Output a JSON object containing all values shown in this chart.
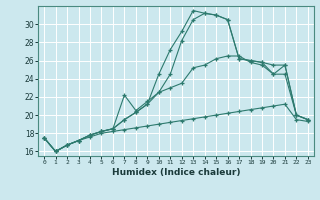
{
  "xlabel": "Humidex (Indice chaleur)",
  "background_color": "#cce8ee",
  "grid_color": "#b0d8e0",
  "line_color": "#2d7a6e",
  "xlim": [
    -0.5,
    23.5
  ],
  "ylim": [
    15.5,
    32
  ],
  "yticks": [
    16,
    18,
    20,
    22,
    24,
    26,
    28,
    30
  ],
  "xticks": [
    0,
    1,
    2,
    3,
    4,
    5,
    6,
    7,
    8,
    9,
    10,
    11,
    12,
    13,
    14,
    15,
    16,
    17,
    18,
    19,
    20,
    21,
    22,
    23
  ],
  "line1_x": [
    0,
    1,
    2,
    3,
    4,
    5,
    6,
    7,
    8,
    9,
    10,
    11,
    12,
    13,
    14,
    15,
    16,
    17,
    18,
    19,
    20,
    21,
    22,
    23
  ],
  "line1_y": [
    17.5,
    16.0,
    16.7,
    17.2,
    17.6,
    18.0,
    18.2,
    18.4,
    18.6,
    18.8,
    19.0,
    19.2,
    19.4,
    19.6,
    19.8,
    20.0,
    20.2,
    20.4,
    20.6,
    20.8,
    21.0,
    21.2,
    19.5,
    19.3
  ],
  "line2_x": [
    0,
    1,
    2,
    3,
    4,
    5,
    6,
    7,
    8,
    9,
    10,
    11,
    12,
    13,
    14,
    15,
    16,
    17,
    18,
    19,
    20,
    21,
    22,
    23
  ],
  "line2_y": [
    17.5,
    16.0,
    16.7,
    17.2,
    17.8,
    18.2,
    18.5,
    19.5,
    20.3,
    21.2,
    24.5,
    27.2,
    29.2,
    31.5,
    31.2,
    31.0,
    30.5,
    26.2,
    26.0,
    25.8,
    25.5,
    25.5,
    20.0,
    19.5
  ],
  "line3_x": [
    0,
    1,
    2,
    3,
    4,
    5,
    6,
    7,
    8,
    9,
    10,
    11,
    12,
    13,
    14,
    15,
    16,
    17,
    18,
    19,
    20,
    21,
    22,
    23
  ],
  "line3_y": [
    17.5,
    16.0,
    16.7,
    17.2,
    17.8,
    18.2,
    18.5,
    19.5,
    20.3,
    21.2,
    22.5,
    23.0,
    23.5,
    25.2,
    25.5,
    26.2,
    26.5,
    26.5,
    25.8,
    25.5,
    24.5,
    25.5,
    20.0,
    19.5
  ],
  "line4_x": [
    0,
    1,
    2,
    3,
    4,
    5,
    6,
    7,
    8,
    9,
    10,
    11,
    12,
    13,
    14,
    15,
    16,
    17,
    18,
    19,
    20,
    21,
    22,
    23
  ],
  "line4_y": [
    17.5,
    16.0,
    16.7,
    17.2,
    17.8,
    18.2,
    18.5,
    22.2,
    20.5,
    21.5,
    22.5,
    24.5,
    28.2,
    30.5,
    31.2,
    31.0,
    30.5,
    26.2,
    26.0,
    25.8,
    24.5,
    24.5,
    20.0,
    19.5
  ]
}
